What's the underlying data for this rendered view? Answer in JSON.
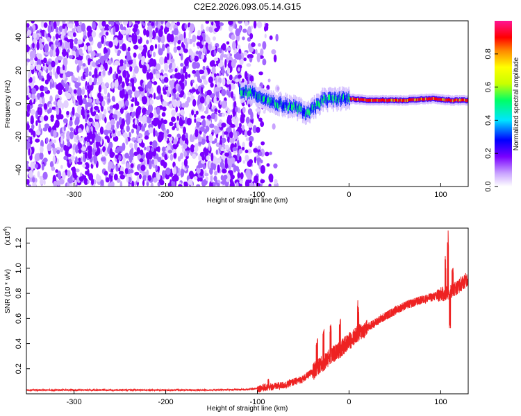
{
  "title": "C2E2.2026.093.05.14.G15",
  "chart_data": [
    {
      "type": "heatmap",
      "title": "",
      "xlabel": "Height of straight line (km)",
      "ylabel": "Frequency (Hz)",
      "xlim": [
        -352,
        130
      ],
      "ylim": [
        -50,
        50
      ],
      "xticks": [
        -300,
        -200,
        -100,
        0,
        100
      ],
      "yticks": [
        -40,
        -20,
        0,
        20,
        40
      ],
      "colorbar": {
        "label": "Normalized spectral amplitude",
        "range": [
          0,
          1
        ],
        "ticks": [
          "0.0",
          "0.2",
          "0.4",
          "0.6",
          "0.8"
        ],
        "tick_values": [
          0.0,
          0.2,
          0.4,
          0.6,
          0.8
        ],
        "colors": [
          "#ffffff",
          "#b37bff",
          "#7a00ff",
          "#0000ff",
          "#00e5ff",
          "#00ff66",
          "#c8ff00",
          "#ffff00",
          "#ff8800",
          "#ff0000",
          "#ff1493"
        ]
      },
      "features": {
        "noise_region_x": [
          -352,
          -90
        ],
        "noise_fade_x": [
          -130,
          -70
        ],
        "signal_band_x": [
          -120,
          130
        ],
        "signal_center_hz": [
          [
            -120,
            8
          ],
          [
            -100,
            5
          ],
          [
            -80,
            0
          ],
          [
            -60,
            -2
          ],
          [
            -45,
            -6
          ],
          [
            -30,
            2
          ],
          [
            -15,
            3
          ],
          [
            0,
            3
          ],
          [
            20,
            2
          ],
          [
            60,
            2
          ],
          [
            90,
            3
          ],
          [
            110,
            2
          ],
          [
            130,
            2
          ]
        ],
        "signal_peak_x": [
          0,
          120
        ]
      }
    },
    {
      "type": "line",
      "title": "",
      "xlabel": "Height of straight line (km)",
      "ylabel": "SNR (10 * v/v)",
      "yscale_label": "(x10",
      "yscale_exponent": "4",
      "xlim": [
        -352,
        130
      ],
      "ylim": [
        0,
        1.32
      ],
      "xticks": [
        -300,
        -200,
        -100,
        0,
        100
      ],
      "yticks": [
        0.2,
        0.4,
        0.6,
        0.8,
        1.0,
        1.2
      ],
      "color": "#ee2222",
      "series": [
        {
          "name": "",
          "points": [
            [
              -352,
              0.03
            ],
            [
              -300,
              0.03
            ],
            [
              -250,
              0.03
            ],
            [
              -200,
              0.03
            ],
            [
              -150,
              0.03
            ],
            [
              -110,
              0.035
            ],
            [
              -90,
              0.05
            ],
            [
              -70,
              0.07
            ],
            [
              -50,
              0.12
            ],
            [
              -35,
              0.2
            ],
            [
              -20,
              0.3
            ],
            [
              -10,
              0.35
            ],
            [
              0,
              0.42
            ],
            [
              10,
              0.48
            ],
            [
              25,
              0.55
            ],
            [
              40,
              0.62
            ],
            [
              60,
              0.7
            ],
            [
              80,
              0.75
            ],
            [
              95,
              0.78
            ],
            [
              105,
              0.8
            ],
            [
              112,
              0.82
            ],
            [
              120,
              0.86
            ],
            [
              130,
              0.92
            ]
          ],
          "spikes": [
            [
              -88,
              0.12
            ],
            [
              -35,
              0.45
            ],
            [
              -28,
              0.52
            ],
            [
              -20,
              0.58
            ],
            [
              -10,
              0.62
            ],
            [
              10,
              0.75
            ],
            [
              105,
              1.1
            ],
            [
              108,
              1.32
            ],
            [
              110,
              0.47
            ],
            [
              113,
              1.05
            ]
          ]
        }
      ]
    }
  ]
}
